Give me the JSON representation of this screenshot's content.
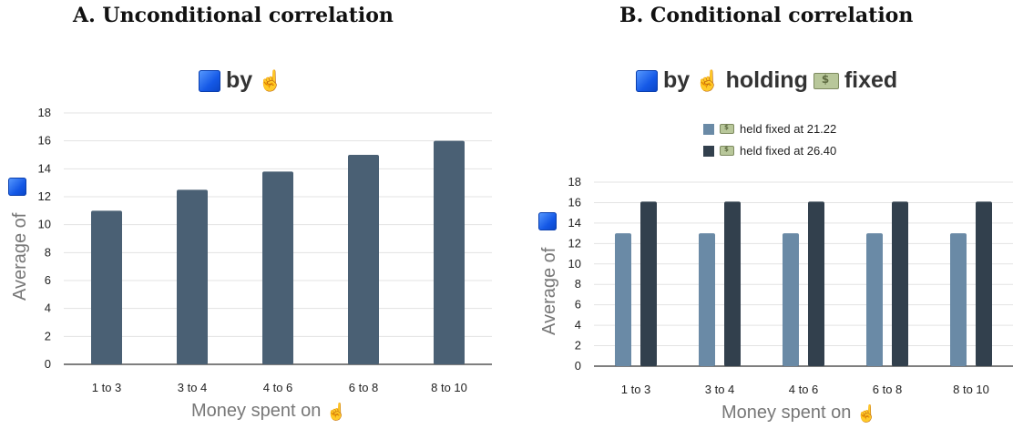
{
  "chart_data": [
    {
      "type": "bar",
      "panel_heading": "A. Unconditional correlation",
      "title": "by",
      "xlabel": "Money spent on",
      "ylabel": "Average of",
      "categories": [
        "1 to 3",
        "3 to 4",
        "4 to 6",
        "6 to 8",
        "8 to 10"
      ],
      "values": [
        11.0,
        12.5,
        13.8,
        15.0,
        16.0
      ],
      "ylim": [
        0,
        18
      ],
      "yticks": [
        0,
        2,
        4,
        6,
        8,
        10,
        12,
        14,
        16,
        18
      ],
      "grid": true,
      "bar_color": "#4a6074"
    },
    {
      "type": "bar",
      "panel_heading": "B. Conditional correlation",
      "title_parts": [
        "by",
        "holding",
        "fixed"
      ],
      "xlabel": "Money spent on",
      "ylabel": "Average of",
      "categories": [
        "1 to 3",
        "3 to 4",
        "4 to 6",
        "6 to 8",
        "8 to 10"
      ],
      "series": [
        {
          "name": "held fixed at 21.22",
          "values": [
            13.0,
            13.0,
            13.0,
            13.0,
            13.0
          ],
          "color": "#6a8aa6"
        },
        {
          "name": "held fixed at 26.40",
          "values": [
            16.1,
            16.1,
            16.1,
            16.1,
            16.1
          ],
          "color": "#32404d"
        }
      ],
      "ylim": [
        0,
        18
      ],
      "yticks": [
        0,
        2,
        4,
        6,
        8,
        10,
        12,
        14,
        16,
        18
      ],
      "grid": true,
      "legend_placement": "top"
    }
  ],
  "icons": {
    "outcome": "blue-square-icon",
    "treatment": "pointing-hand-icon",
    "control": "money-icon"
  }
}
